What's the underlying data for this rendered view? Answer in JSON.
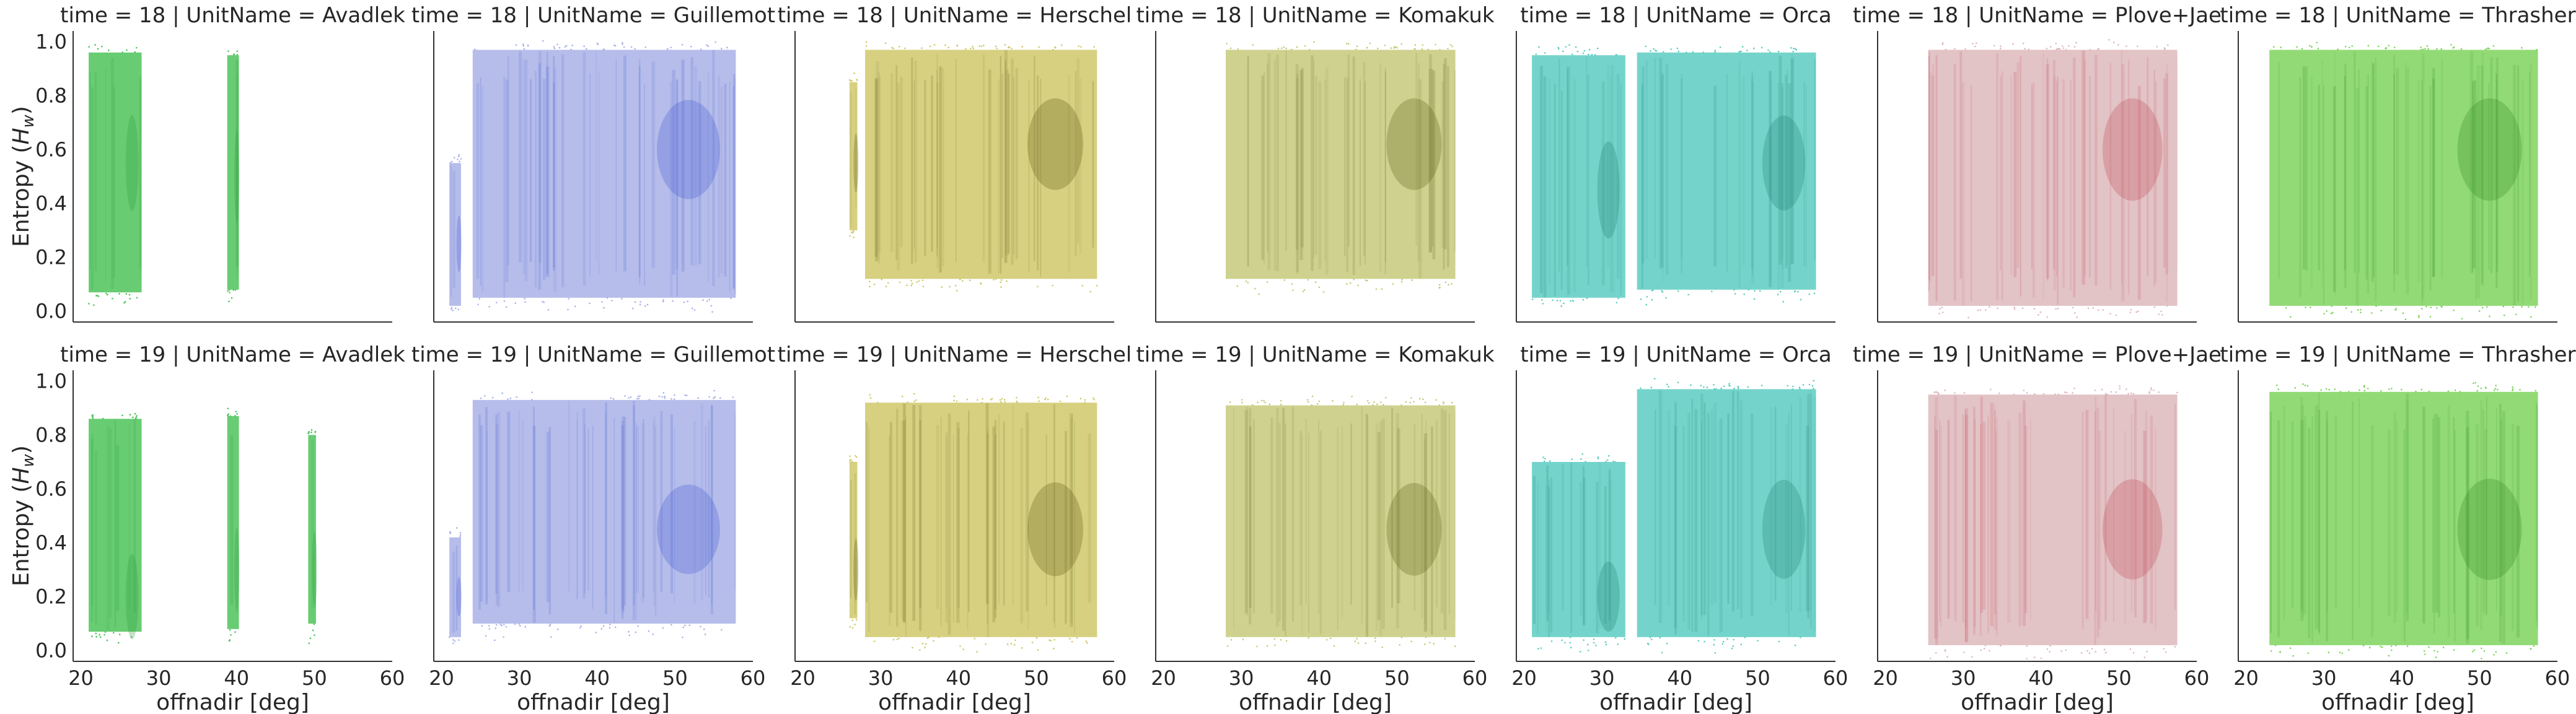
{
  "chart_data": {
    "type": "scatter",
    "x_label": "offnadir [deg]",
    "y_label": "Entropy (H_w)",
    "y_label_main": "Entropy (",
    "y_label_var": "H",
    "y_label_sub": "w",
    "y_label_close": ")",
    "xlim": [
      19,
      60
    ],
    "ylim": [
      -0.04,
      1.04
    ],
    "x_ticks": [
      20,
      30,
      40,
      50,
      60
    ],
    "y_ticks": [
      0.0,
      0.2,
      0.4,
      0.6,
      0.8,
      1.0
    ],
    "y_tick_labels": [
      "0.0",
      "0.2",
      "0.4",
      "0.6",
      "0.8",
      "1.0"
    ],
    "grid": false,
    "legend": "none",
    "panels": [
      {
        "title": "time = 18 | UnitName = Avadlek",
        "row": 0,
        "col": 0,
        "color": "#4dc35a",
        "dense": "#2f9a3c",
        "bands": [
          {
            "x0": 21.0,
            "x1": 27.8,
            "y0": 0.07,
            "y1": 0.96,
            "peak": 0.55
          },
          {
            "x0": 38.8,
            "x1": 40.3,
            "y0": 0.08,
            "y1": 0.95,
            "peak": 0.5
          }
        ]
      },
      {
        "title": "time = 18 | UnitName = Guillemot",
        "row": 0,
        "col": 1,
        "color": "#a9b2e6",
        "dense": "#3d56d0",
        "bands": [
          {
            "x0": 21.0,
            "x1": 22.5,
            "y0": 0.02,
            "y1": 0.55,
            "peak": 0.25
          },
          {
            "x0": 24.0,
            "x1": 57.8,
            "y0": 0.05,
            "y1": 0.97,
            "peak": 0.6
          }
        ]
      },
      {
        "title": "time = 18 | UnitName = Herschel",
        "row": 0,
        "col": 2,
        "color": "#cfc86a",
        "dense": "#5a5410",
        "bands": [
          {
            "x0": 26.0,
            "x1": 27.0,
            "y0": 0.3,
            "y1": 0.85,
            "peak": 0.55
          },
          {
            "x0": 28.0,
            "x1": 57.8,
            "y0": 0.12,
            "y1": 0.97,
            "peak": 0.62
          }
        ]
      },
      {
        "title": "time = 18 | UnitName = Komakuk",
        "row": 0,
        "col": 3,
        "color": "#c6ca7a",
        "dense": "#555a10",
        "bands": [
          {
            "x0": 28.0,
            "x1": 57.5,
            "y0": 0.12,
            "y1": 0.97,
            "peak": 0.62
          }
        ]
      },
      {
        "title": "time = 18 | UnitName = Orca",
        "row": 0,
        "col": 4,
        "color": "#5ccdc2",
        "dense": "#1b7d72",
        "bands": [
          {
            "x0": 21.0,
            "x1": 33.0,
            "y0": 0.05,
            "y1": 0.95,
            "peak": 0.45
          },
          {
            "x0": 34.5,
            "x1": 57.5,
            "y0": 0.08,
            "y1": 0.96,
            "peak": 0.55
          }
        ]
      },
      {
        "title": "time = 18 | UnitName = Plove+Jae",
        "row": 0,
        "col": 5,
        "color": "#ddb8bc",
        "dense": "#c04450",
        "bands": [
          {
            "x0": 25.5,
            "x1": 57.5,
            "y0": 0.02,
            "y1": 0.97,
            "peak": 0.6
          }
        ]
      },
      {
        "title": "time = 18 | UnitName = Thrasher",
        "row": 0,
        "col": 6,
        "color": "#7fd45e",
        "dense": "#2f8a22",
        "bands": [
          {
            "x0": 23.0,
            "x1": 57.5,
            "y0": 0.02,
            "y1": 0.97,
            "peak": 0.6
          }
        ]
      },
      {
        "title": "time = 19 | UnitName = Avadlek",
        "row": 1,
        "col": 0,
        "color": "#4dc35a",
        "dense": "#2f9a3c",
        "bands": [
          {
            "x0": 21.0,
            "x1": 27.8,
            "y0": 0.07,
            "y1": 0.86,
            "peak": 0.2
          },
          {
            "x0": 38.8,
            "x1": 40.3,
            "y0": 0.08,
            "y1": 0.87,
            "peak": 0.3
          },
          {
            "x0": 49.2,
            "x1": 50.2,
            "y0": 0.1,
            "y1": 0.8,
            "peak": 0.3
          }
        ]
      },
      {
        "title": "time = 19 | UnitName = Guillemot",
        "row": 1,
        "col": 1,
        "color": "#a9b2e6",
        "dense": "#3d56d0",
        "bands": [
          {
            "x0": 21.0,
            "x1": 22.5,
            "y0": 0.05,
            "y1": 0.42,
            "peak": 0.2
          },
          {
            "x0": 24.0,
            "x1": 57.8,
            "y0": 0.1,
            "y1": 0.93,
            "peak": 0.45
          }
        ]
      },
      {
        "title": "time = 19 | UnitName = Herschel",
        "row": 1,
        "col": 2,
        "color": "#cfc86a",
        "dense": "#5a5410",
        "bands": [
          {
            "x0": 26.0,
            "x1": 27.0,
            "y0": 0.12,
            "y1": 0.7,
            "peak": 0.3
          },
          {
            "x0": 28.0,
            "x1": 57.8,
            "y0": 0.05,
            "y1": 0.92,
            "peak": 0.45
          }
        ]
      },
      {
        "title": "time = 19 | UnitName = Komakuk",
        "row": 1,
        "col": 3,
        "color": "#c6ca7a",
        "dense": "#555a10",
        "bands": [
          {
            "x0": 28.0,
            "x1": 57.5,
            "y0": 0.05,
            "y1": 0.91,
            "peak": 0.45
          }
        ]
      },
      {
        "title": "time = 19 | UnitName = Orca",
        "row": 1,
        "col": 4,
        "color": "#5ccdc2",
        "dense": "#1b7d72",
        "bands": [
          {
            "x0": 21.0,
            "x1": 33.0,
            "y0": 0.05,
            "y1": 0.7,
            "peak": 0.2
          },
          {
            "x0": 34.5,
            "x1": 57.5,
            "y0": 0.05,
            "y1": 0.97,
            "peak": 0.45
          }
        ]
      },
      {
        "title": "time = 19 | UnitName = Plove+Jae",
        "row": 1,
        "col": 5,
        "color": "#ddb8bc",
        "dense": "#c04450",
        "bands": [
          {
            "x0": 25.5,
            "x1": 57.5,
            "y0": 0.02,
            "y1": 0.95,
            "peak": 0.45
          }
        ]
      },
      {
        "title": "time = 19 | UnitName = Thrasher",
        "row": 1,
        "col": 6,
        "color": "#7fd45e",
        "dense": "#2f8a22",
        "bands": [
          {
            "x0": 23.0,
            "x1": 57.5,
            "y0": 0.02,
            "y1": 0.96,
            "peak": 0.45
          }
        ]
      }
    ]
  }
}
